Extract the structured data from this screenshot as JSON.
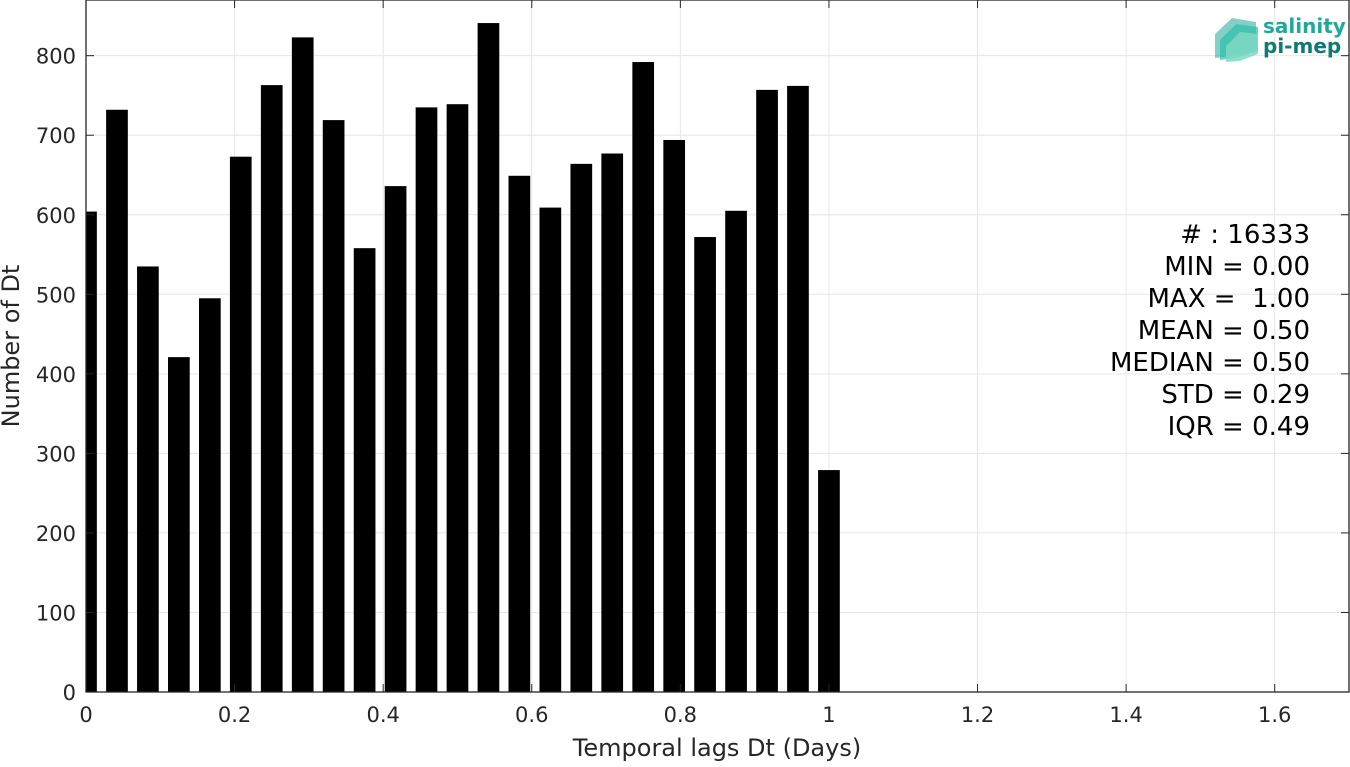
{
  "chart_data": {
    "type": "bar",
    "xlabel": "Temporal lags Dt (Days)",
    "ylabel": "Number of Dt",
    "xlim": [
      0,
      1.7
    ],
    "ylim": [
      0,
      870
    ],
    "xticks": [
      "0",
      "0.2",
      "0.4",
      "0.6",
      "0.8",
      "1",
      "1.2",
      "1.4",
      "1.6"
    ],
    "yticks": [
      "0",
      "100",
      "200",
      "300",
      "400",
      "500",
      "600",
      "700",
      "800"
    ],
    "grid": true,
    "bar_width_days": 0.0292,
    "bar_color": "#000000",
    "x": [
      0,
      0.0417,
      0.0833,
      0.125,
      0.1667,
      0.2083,
      0.25,
      0.2917,
      0.3333,
      0.375,
      0.4167,
      0.4583,
      0.5,
      0.5417,
      0.5833,
      0.625,
      0.6667,
      0.7083,
      0.75,
      0.7917,
      0.8333,
      0.875,
      0.9167,
      0.9583,
      1.0
    ],
    "values": [
      604,
      732,
      535,
      421,
      495,
      673,
      763,
      823,
      719,
      558,
      636,
      735,
      739,
      841,
      649,
      609,
      664,
      677,
      792,
      694,
      572,
      605,
      757,
      762,
      279
    ]
  },
  "stats": {
    "lines": [
      "# : 16333",
      "MIN = 0.00",
      "MAX =  1.00",
      "MEAN = 0.50",
      "MEDIAN = 0.50",
      "STD = 0.29",
      "IQR = 0.49"
    ]
  },
  "logo": {
    "line1": "salinity",
    "line2": "pi-mep",
    "color": "#1fa99b",
    "dark_color": "#0e7c72"
  }
}
